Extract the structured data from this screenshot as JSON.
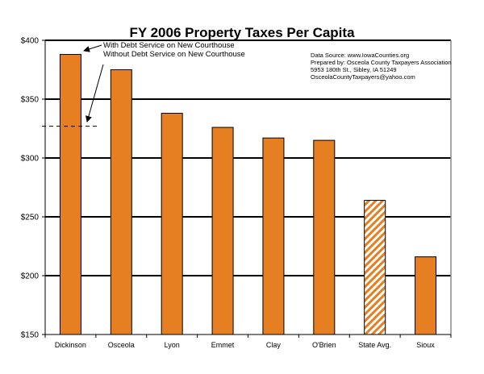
{
  "chart_data": {
    "type": "bar",
    "title": "FY 2006 Property Taxes Per Capita",
    "xlabel": "",
    "ylabel": "",
    "ylim": [
      150,
      400
    ],
    "yticks": [
      150,
      200,
      250,
      300,
      350,
      400
    ],
    "ytick_labels": [
      "$150",
      "$200",
      "$250",
      "$300",
      "$350",
      "$400"
    ],
    "grid": true,
    "categories": [
      "Dickinson",
      "Osceola",
      "Lyon",
      "Emmet",
      "Clay",
      "O'Brien",
      "State Avg.",
      "Sioux"
    ],
    "values": [
      388,
      375,
      338,
      326,
      317,
      315,
      264,
      216
    ],
    "hatched": [
      false,
      false,
      false,
      false,
      false,
      false,
      true,
      false
    ],
    "bar_color": "#E67E22",
    "reference_line": {
      "label": "Without Debt Service on New Courthouse",
      "value": 327,
      "category": "Dickinson",
      "style": "dashed"
    },
    "annotations": [
      "With Debt Service on New Courthouse",
      "Without Debt Service on New Courthouse"
    ],
    "source_note": [
      "Data Source: www.IowaCounties.org",
      "Prepared by: Osceola County Taxpayers Association",
      "5953 180th St., Sibley, IA 51249",
      "OsceolaCountyTaxpayers@yahoo.com"
    ]
  }
}
